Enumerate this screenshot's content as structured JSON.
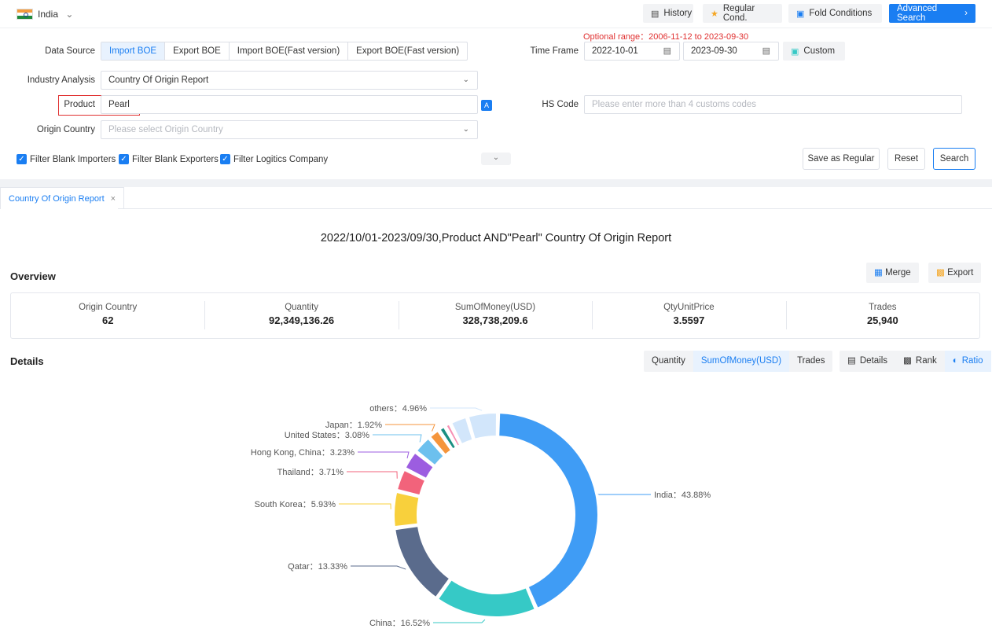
{
  "topbar": {
    "country": "India",
    "history_label": "History",
    "regular_label": "Regular Cond.",
    "fold_label": "Fold Conditions",
    "advanced_label": "Advanced Search"
  },
  "form": {
    "optional_range": "Optional range：2006-11-12 to 2023-09-30",
    "data_source_label": "Data Source",
    "data_sources": [
      "Import BOE",
      "Export BOE",
      "Import BOE(Fast version)",
      "Export BOE(Fast version)"
    ],
    "time_frame_label": "Time Frame",
    "date_from": "2022-10-01",
    "date_to": "2023-09-30",
    "custom_label": "Custom",
    "industry_label": "Industry Analysis",
    "industry_value": "Country Of Origin Report",
    "product_label": "Product",
    "product_value": "Pearl",
    "hs_label": "HS Code",
    "hs_placeholder": "Please enter more than 4 customs codes",
    "origin_label": "Origin Country",
    "origin_placeholder": "Please select Origin Country",
    "filters": [
      "Filter Blank Importers",
      "Filter Blank Exporters",
      "Filter Logitics Company"
    ],
    "save_regular": "Save as Regular",
    "reset": "Reset",
    "search": "Search"
  },
  "tab": {
    "label": "Country Of Origin Report"
  },
  "report": {
    "title": "2022/10/01-2023/09/30,Product AND\"Pearl\" Country Of Origin Report",
    "overview_label": "Overview",
    "merge_label": "Merge",
    "export_label": "Export",
    "overview": [
      {
        "key": "Origin Country",
        "value": "62"
      },
      {
        "key": "Quantity",
        "value": "92,349,136.26"
      },
      {
        "key": "SumOfMoney(USD)",
        "value": "328,738,209.6"
      },
      {
        "key": "QtyUnitPrice",
        "value": "3.5597"
      },
      {
        "key": "Trades",
        "value": "25,940"
      }
    ],
    "details_label": "Details",
    "metric_tabs": [
      "Quantity",
      "SumOfMoney(USD)",
      "Trades"
    ],
    "view_tabs": [
      "Details",
      "Rank",
      "Ratio"
    ]
  },
  "chart_data": {
    "type": "pie",
    "donut": true,
    "categories": [
      "India",
      "China",
      "Qatar",
      "South Korea",
      "Thailand",
      "Hong Kong, China",
      "United States",
      "Japan",
      "others"
    ],
    "values": [
      43.88,
      16.52,
      13.33,
      5.93,
      3.71,
      3.23,
      3.08,
      1.92,
      4.96
    ],
    "labels": [
      "India：43.88%",
      "China：16.52%",
      "Qatar：13.33%",
      "South Korea：5.93%",
      "Thailand：3.71%",
      "Hong Kong, China：3.23%",
      "United States：3.08%",
      "Japan：1.92%",
      "others：4.96%"
    ],
    "colors": [
      "#3f9cf5",
      "#36c9c6",
      "#5a6b8c",
      "#f8d03c",
      "#f2637b",
      "#9c5de0",
      "#6cc0ee",
      "#f5953c",
      "#1a8f82",
      "#f78fb3",
      "#d2e6fb"
    ],
    "unlabeled_small_segments": [
      1.15,
      0.95,
      2.86
    ]
  }
}
